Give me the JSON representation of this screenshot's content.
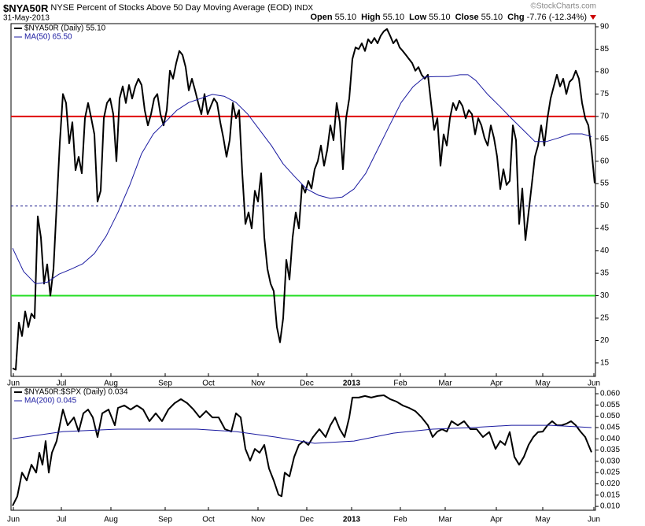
{
  "chart_data": [
    {
      "type": "line",
      "symbol": "$NYA50R",
      "title": "NYSE Percent of Stocks Above 50 Day Moving Average (EOD)",
      "exchange": "INDX",
      "date": "31-May-2013",
      "watermark": "©StockCharts.com",
      "quote": [
        {
          "label": "Open",
          "value": "55.10"
        },
        {
          "label": "High",
          "value": "55.10"
        },
        {
          "label": "Low",
          "value": "55.10"
        },
        {
          "label": "Close",
          "value": "55.10"
        },
        {
          "label": "Chg",
          "value": "-7.76 (-12.34%)"
        }
      ],
      "xlim": [
        -0.5,
        185.25
      ],
      "xticks": [
        {
          "value": 0.25,
          "label": "Jun"
        },
        {
          "value": 15.5,
          "label": "Jul"
        },
        {
          "value": 31.25,
          "label": "Aug"
        },
        {
          "value": 48.5,
          "label": "Sep"
        },
        {
          "value": 62.25,
          "label": "Oct"
        },
        {
          "value": 78,
          "label": "Nov"
        },
        {
          "value": 93.5,
          "label": "Dec"
        },
        {
          "value": 107.75,
          "label": "2013"
        },
        {
          "value": 123.25,
          "label": "Feb"
        },
        {
          "value": 137.5,
          "label": "Mar"
        },
        {
          "value": 153.75,
          "label": "Apr"
        },
        {
          "value": 168.5,
          "label": "May"
        },
        {
          "value": 184.75,
          "label": "Jun"
        }
      ],
      "ylim": [
        12,
        90.7
      ],
      "yticks": [
        15,
        20,
        25,
        30,
        35,
        40,
        45,
        50,
        55,
        60,
        65,
        70,
        75,
        80,
        85,
        90
      ],
      "grid": false,
      "reference_lines": [
        {
          "value": 70,
          "color": "#e00000"
        },
        {
          "value": 50,
          "color": "#1a1a8c",
          "dashed": true
        },
        {
          "value": 30,
          "color": "#22dd22"
        }
      ],
      "series": [
        {
          "name": "$NYA50R (Daily) 55.10",
          "color": "#000000",
          "x": [
            0,
            1,
            2,
            3,
            4,
            5,
            6,
            7,
            8,
            9,
            10,
            11,
            12,
            13,
            14,
            15,
            16,
            17,
            18,
            19,
            20,
            21,
            22,
            23,
            24,
            25,
            26,
            27,
            28,
            29,
            30,
            31,
            32,
            33,
            34,
            35,
            36,
            37,
            38,
            39,
            40,
            41,
            42,
            43,
            44,
            45,
            46,
            47,
            48,
            49,
            50,
            51,
            52,
            53,
            54,
            55,
            56,
            57,
            58,
            59,
            60,
            61,
            62,
            63,
            64,
            65,
            66,
            67,
            68,
            69,
            70,
            71,
            72,
            73,
            74,
            75,
            76,
            77,
            78,
            79,
            80,
            81,
            82,
            83,
            84,
            85,
            86,
            87,
            88,
            89,
            90,
            91,
            92,
            93,
            94,
            95,
            96,
            97,
            98,
            99,
            100,
            101,
            102,
            103,
            104,
            105,
            106,
            107,
            108,
            109,
            110,
            111,
            112,
            113,
            114,
            115,
            116,
            117,
            118,
            119,
            120,
            121,
            122,
            123,
            124,
            125,
            126,
            127,
            128,
            129,
            130,
            131,
            132,
            133,
            134,
            135,
            136,
            137,
            138,
            139,
            140,
            141,
            142,
            143,
            144,
            145,
            146,
            147,
            148,
            149,
            150,
            151,
            152,
            153,
            154,
            155,
            156,
            157,
            158,
            159,
            160,
            161,
            162,
            163,
            164,
            165,
            166,
            167,
            168,
            169,
            170,
            171,
            172,
            173,
            174,
            175,
            176,
            177,
            178,
            179,
            180,
            181,
            182,
            183,
            184,
            185
          ],
          "values": [
            13.8,
            13.5,
            24,
            21,
            26.5,
            23,
            26,
            25,
            47.7,
            43,
            32.7,
            37,
            30,
            36,
            50,
            64,
            75,
            73,
            64,
            68.7,
            58,
            61,
            57.3,
            69.6,
            73,
            69.6,
            66,
            51,
            53.4,
            69.6,
            73,
            74,
            70.5,
            60,
            74,
            76.7,
            73,
            77,
            74,
            76.7,
            78.4,
            77,
            71.4,
            68,
            70.5,
            74,
            75,
            70.5,
            68,
            71.4,
            80.2,
            78.4,
            81.9,
            84.6,
            83.7,
            81,
            75.8,
            78.4,
            75.8,
            73,
            70.5,
            75,
            70.5,
            72.3,
            74,
            73,
            68.7,
            65.2,
            61,
            64.7,
            73,
            69.6,
            71.4,
            57.3,
            46,
            48.6,
            45,
            53.4,
            51,
            57.3,
            43,
            36,
            32.7,
            31,
            23,
            19.6,
            25,
            38,
            33.6,
            43,
            48.6,
            45,
            54.7,
            53,
            55.6,
            53.9,
            58.2,
            60,
            63.5,
            59,
            62.5,
            68,
            64.7,
            73,
            68.7,
            58.2,
            69.6,
            74,
            82.8,
            85.4,
            85,
            86.3,
            84.6,
            87.2,
            86.3,
            87.5,
            86.3,
            88,
            89,
            89.5,
            88,
            86.3,
            87.2,
            85.4,
            84.6,
            83.7,
            82.8,
            81.9,
            80.2,
            81,
            79.3,
            78.4,
            79.3,
            73,
            67,
            69.6,
            59,
            66,
            63.5,
            69.6,
            73,
            71.4,
            73.5,
            72.3,
            69.6,
            71.4,
            70.5,
            66,
            69.6,
            68,
            65.2,
            63.5,
            68,
            65.2,
            61,
            53.8,
            58.2,
            54.7,
            55.6,
            68,
            64.7,
            46,
            53.9,
            42.4,
            48.6,
            54.7,
            61,
            63.5,
            68,
            63.5,
            69.6,
            74,
            76.7,
            79.3,
            76.7,
            78.4,
            75,
            77.7,
            78.4,
            80.2,
            78.4,
            73,
            69.6,
            68,
            62.5,
            55.1
          ]
        },
        {
          "name": "MA(50) 65.50",
          "color": "#1a1aa0",
          "x": [
            0,
            3.5,
            7.25,
            11,
            14.75,
            18.5,
            22.25,
            26,
            29.75,
            33.5,
            37.25,
            41,
            44.75,
            48.5,
            52.25,
            56,
            59.75,
            63.5,
            67.25,
            71,
            74.75,
            78.5,
            82.25,
            86,
            89.75,
            93.5,
            97.25,
            101,
            104.75,
            108.5,
            112.25,
            116,
            119.75,
            123.5,
            127.25,
            131,
            134.75,
            138.5,
            142.25,
            144.75,
            147.25,
            151,
            154.75,
            158.5,
            162.25,
            166,
            169.75,
            173.5,
            177.25,
            181,
            184
          ],
          "values": [
            40.6,
            35.4,
            32.7,
            33,
            34.8,
            35.9,
            37.1,
            39.4,
            43.3,
            48.6,
            54.7,
            61.7,
            66.1,
            68.7,
            71.4,
            73.1,
            74,
            74.9,
            74.5,
            73.1,
            70.5,
            67,
            63.5,
            59.4,
            56.5,
            53.8,
            52.4,
            51.7,
            52,
            53.8,
            57.3,
            62.6,
            67.9,
            73.1,
            76.6,
            78.8,
            78.9,
            78.9,
            79.3,
            79.3,
            78,
            74.9,
            72.3,
            69.6,
            67,
            64.4,
            64.4,
            65.2,
            66.1,
            66.1,
            65.5
          ]
        }
      ]
    },
    {
      "type": "line",
      "xlim": [
        -0.5,
        185.25
      ],
      "xticks": [
        {
          "value": 0.25,
          "label": "Jun"
        },
        {
          "value": 15.5,
          "label": "Jul"
        },
        {
          "value": 31.25,
          "label": "Aug"
        },
        {
          "value": 48.5,
          "label": "Sep"
        },
        {
          "value": 62.25,
          "label": "Oct"
        },
        {
          "value": 78,
          "label": "Nov"
        },
        {
          "value": 93.5,
          "label": "Dec"
        },
        {
          "value": 107.75,
          "label": "2013"
        },
        {
          "value": 123.25,
          "label": "Feb"
        },
        {
          "value": 137.5,
          "label": "Mar"
        },
        {
          "value": 153.75,
          "label": "Apr"
        },
        {
          "value": 168.5,
          "label": "May"
        },
        {
          "value": 184.75,
          "label": "Jun"
        }
      ],
      "ylim": [
        0.0083,
        0.0628
      ],
      "yticks": [
        {
          "value": 0.01,
          "label": "0.010"
        },
        0.015,
        {
          "value": 0.02,
          "label": "0.020"
        },
        0.025,
        {
          "value": 0.03,
          "label": "0.030"
        },
        0.035,
        {
          "value": 0.04,
          "label": "0.040"
        },
        0.045,
        {
          "value": 0.05,
          "label": "0.050"
        },
        0.055,
        {
          "value": 0.06,
          "label": "0.060"
        }
      ],
      "grid": false,
      "series": [
        {
          "name": "$NYA50R:$SPX (Daily) 0.034",
          "color": "#000000",
          "x": [
            0,
            1.5,
            3,
            4.5,
            6,
            7.5,
            8.5,
            9.5,
            10.5,
            11.5,
            12.5,
            14,
            15,
            16,
            17.5,
            19.5,
            21,
            22.5,
            24,
            25.5,
            27,
            28.5,
            30.5,
            32.5,
            33.5,
            35.5,
            37.5,
            39.5,
            41.5,
            43.5,
            45.5,
            47.5,
            49.5,
            51.5,
            53.5,
            55.5,
            57.5,
            59.5,
            61.5,
            63.5,
            65.5,
            67.5,
            69.5,
            71,
            72.5,
            74,
            75.5,
            77,
            78.5,
            80,
            81.5,
            83,
            84.5,
            85.5,
            86.5,
            88,
            89.5,
            91,
            92.5,
            94,
            95.5,
            97.5,
            99.5,
            101,
            102.5,
            104,
            105.5,
            107,
            108,
            110,
            112,
            114,
            116,
            118,
            120,
            122,
            124,
            126,
            128,
            130,
            132,
            133.5,
            135,
            136.5,
            138,
            139.5,
            141.5,
            143.5,
            145.5,
            147.5,
            149.5,
            151.5,
            153.5,
            155,
            156.5,
            158,
            159.5,
            161,
            162.5,
            164,
            165.5,
            167,
            168.5,
            170,
            171.5,
            173,
            174.5,
            176,
            177.5,
            179,
            180.5,
            182,
            184
          ],
          "values": [
            0.0103,
            0.0145,
            0.025,
            0.0215,
            0.0285,
            0.025,
            0.0338,
            0.0285,
            0.039,
            0.025,
            0.0338,
            0.039,
            0.046,
            0.053,
            0.046,
            0.0495,
            0.0432,
            0.0513,
            0.053,
            0.0495,
            0.0408,
            0.0513,
            0.053,
            0.046,
            0.0537,
            0.0548,
            0.053,
            0.0548,
            0.053,
            0.0478,
            0.0513,
            0.0478,
            0.053,
            0.0558,
            0.0576,
            0.0558,
            0.053,
            0.0495,
            0.0523,
            0.0495,
            0.0495,
            0.0443,
            0.0432,
            0.0513,
            0.0495,
            0.0355,
            0.0303,
            0.0355,
            0.0338,
            0.0373,
            0.0268,
            0.0215,
            0.0152,
            0.0145,
            0.025,
            0.0233,
            0.032,
            0.0373,
            0.039,
            0.0373,
            0.0408,
            0.0443,
            0.0408,
            0.046,
            0.0495,
            0.0443,
            0.0408,
            0.0495,
            0.0583,
            0.0583,
            0.059,
            0.0583,
            0.059,
            0.0593,
            0.0576,
            0.0565,
            0.0548,
            0.0537,
            0.0523,
            0.0495,
            0.046,
            0.0408,
            0.0432,
            0.0443,
            0.0432,
            0.0478,
            0.046,
            0.0478,
            0.0443,
            0.0443,
            0.0408,
            0.043,
            0.0355,
            0.039,
            0.0373,
            0.043,
            0.032,
            0.0285,
            0.032,
            0.0373,
            0.0408,
            0.043,
            0.0432,
            0.046,
            0.0478,
            0.046,
            0.046,
            0.0467,
            0.0478,
            0.046,
            0.0432,
            0.0408,
            0.034
          ]
        },
        {
          "name": "MA(200) 0.045",
          "color": "#1a1aa0",
          "x": [
            0,
            16,
            33.5,
            58.5,
            71,
            83.5,
            96,
            108.5,
            121,
            133.5,
            146,
            158.5,
            171,
            184
          ],
          "values": [
            0.04,
            0.0432,
            0.0443,
            0.0443,
            0.0432,
            0.0408,
            0.038,
            0.039,
            0.0425,
            0.0443,
            0.045,
            0.046,
            0.046,
            0.045
          ]
        }
      ]
    }
  ]
}
